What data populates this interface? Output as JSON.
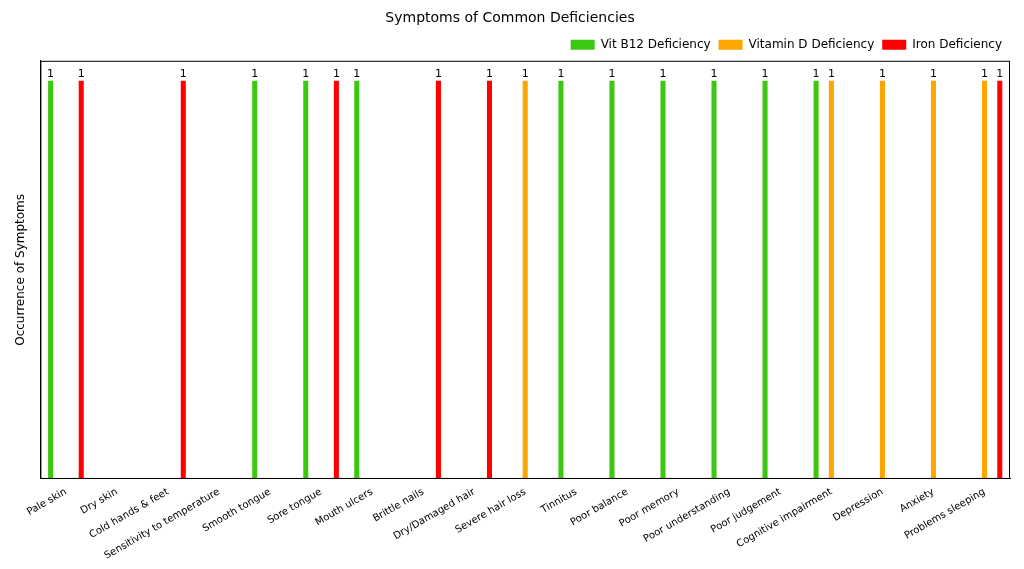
{
  "chart_data": {
    "type": "bar",
    "title": "Symptoms of Common Deficiencies",
    "y_label": "Occurrence of Symptoms",
    "categories": [
      "Pale skin",
      "Dry skin",
      "Cold hands & feet",
      "Sensitivity to temperature",
      "Smooth tongue",
      "Sore tongue",
      "Mouth ulcers",
      "Brittle nails",
      "Dry/Damaged hair",
      "Severe hair loss",
      "Tinnitus",
      "Poor balance",
      "Poor memory",
      "Poor understanding",
      "Poor judgement",
      "Cognitive impairment",
      "Depression",
      "Anxiety",
      "Problems sleeping"
    ],
    "series": [
      {
        "name": "Vit B12 Deficiency",
        "color": "#3cc80f",
        "values": [
          1,
          null,
          null,
          null,
          1,
          1,
          1,
          null,
          null,
          null,
          1,
          1,
          1,
          1,
          1,
          1,
          null,
          null,
          null
        ]
      },
      {
        "name": "Vitamin D Deficiency",
        "color": "#ffa500",
        "values": [
          null,
          null,
          null,
          null,
          null,
          null,
          null,
          null,
          null,
          1,
          null,
          null,
          null,
          null,
          null,
          1,
          1,
          1,
          1
        ]
      },
      {
        "name": "Iron Deficiency",
        "color": "#ff0000",
        "values": [
          1,
          null,
          1,
          null,
          null,
          1,
          null,
          1,
          1,
          null,
          null,
          null,
          null,
          null,
          null,
          null,
          null,
          null,
          1
        ]
      }
    ],
    "ylim": [
      0,
      1.05
    ],
    "grid": false,
    "legend": "upper right",
    "data_labels": true,
    "tick_labels": "x"
  }
}
